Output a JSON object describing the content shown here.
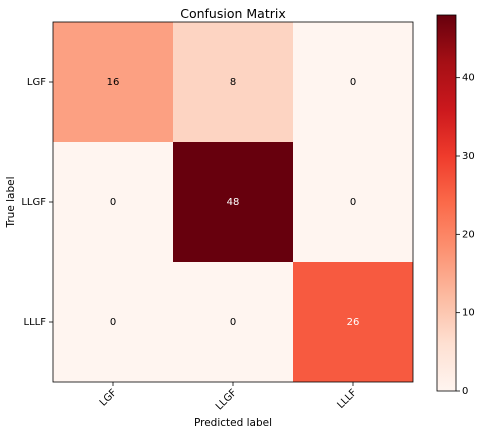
{
  "chart_data": {
    "type": "heatmap",
    "title": "Confusion Matrix",
    "xlabel": "Predicted label",
    "ylabel": "True label",
    "x_categories": [
      "LGF",
      "LLGF",
      "LLLF"
    ],
    "y_categories": [
      "LGF",
      "LLGF",
      "LLLF"
    ],
    "values": [
      [
        16,
        8,
        0
      ],
      [
        0,
        48,
        0
      ],
      [
        0,
        0,
        26
      ]
    ],
    "colormap": "Reds",
    "color_range": [
      0,
      48
    ],
    "colorbar_ticks": [
      0,
      10,
      20,
      30,
      40
    ],
    "x_tick_rotation": "45deg",
    "grid": false
  }
}
